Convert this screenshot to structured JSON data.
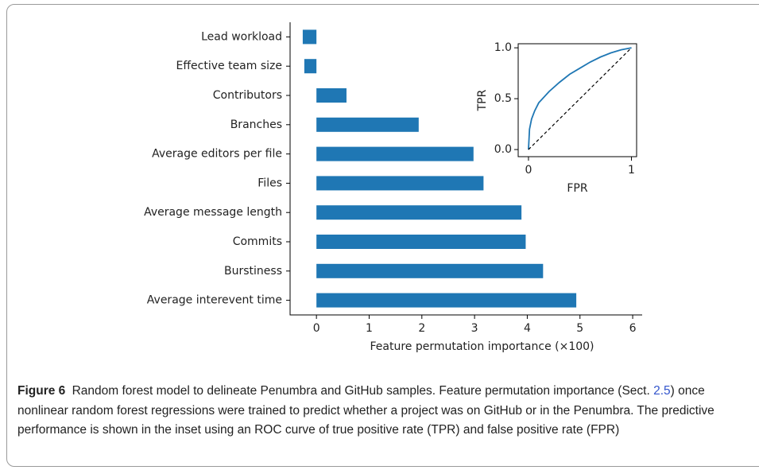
{
  "chart_data": [
    {
      "type": "bar",
      "orientation": "horizontal",
      "categories": [
        "Lead workload",
        "Effective team size",
        "Contributors",
        "Branches",
        "Average editors per file",
        "Files",
        "Average message length",
        "Commits",
        "Burstiness",
        "Average interevent time"
      ],
      "values": [
        -0.26,
        -0.23,
        0.57,
        1.94,
        2.98,
        3.17,
        3.89,
        3.97,
        4.3,
        4.93
      ],
      "color": "#1f77b4",
      "xlabel": "Feature permutation importance (×100)",
      "xlim": [
        -0.5,
        6.18
      ],
      "xticks": [
        0,
        1,
        2,
        3,
        4,
        5,
        6
      ]
    },
    {
      "type": "line",
      "xlabel": "FPR",
      "ylabel": "TPR",
      "xlim": [
        -0.1,
        1.05
      ],
      "ylim": [
        -0.07,
        1.04
      ],
      "xticks": [
        0,
        1
      ],
      "yticks": [
        {
          "value": 0,
          "label": "0.0"
        },
        0.5,
        {
          "value": 1,
          "label": "1.0"
        }
      ],
      "series": [
        {
          "color": "#1f77b4",
          "x": [
            0,
            0.01,
            0.03,
            0.06,
            0.1,
            0.2,
            0.3,
            0.4,
            0.5,
            0.6,
            0.7,
            0.8,
            0.9,
            1
          ],
          "values": [
            0,
            0.2,
            0.3,
            0.38,
            0.46,
            0.57,
            0.66,
            0.74,
            0.8,
            0.86,
            0.91,
            0.95,
            0.98,
            1
          ]
        },
        {
          "color": "#000000",
          "dashed": true,
          "x": [
            0,
            1
          ],
          "values": [
            0,
            1
          ]
        }
      ]
    }
  ],
  "caption": {
    "label": "Figure 6",
    "text_before": "Random forest model to delineate Penumbra and GitHub samples. Feature permutation importance (Sect. ",
    "link": "2.5",
    "text_after": ") once nonlinear random forest regressions were trained to predict whether a project was on GitHub or in the Penumbra. The predictive performance is shown in the inset using an ROC curve of true positive rate (TPR) and false positive rate (FPR)"
  }
}
